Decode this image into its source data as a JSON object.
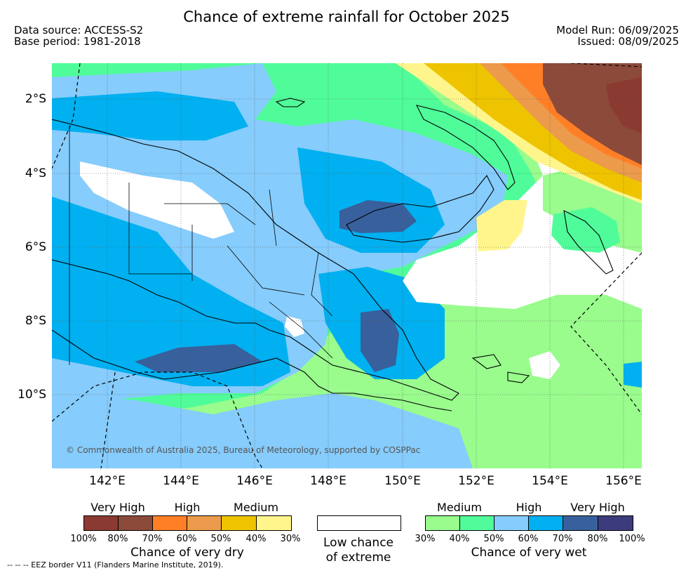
{
  "title": "Chance of extreme rainfall for October 2025",
  "data_source": "Data source: ACCESS-S2",
  "base_period": "Base period: 1981-2018",
  "model_run": "Model Run: 06/09/2025",
  "issued": "Issued: 08/09/2025",
  "map": {
    "lat_labels": [
      "2°S",
      "4°S",
      "6°S",
      "8°S",
      "10°S"
    ],
    "lon_labels": [
      "142°E",
      "144°E",
      "146°E",
      "148°E",
      "150°E",
      "152°E",
      "154°E",
      "156°E"
    ],
    "copyright": "© Commonwealth of Australia 2025, Bureau of Meteorology, supported by COSPPac"
  },
  "legend": {
    "dry": {
      "top_labels": [
        "Very High",
        "High",
        "Medium"
      ],
      "colors": [
        "#8b3a32",
        "#8c4a3a",
        "#ff7f27",
        "#eb9b4b",
        "#eec400",
        "#fff58c"
      ],
      "ticks": [
        "100%",
        "80%",
        "70%",
        "60%",
        "50%",
        "40%",
        "30%"
      ],
      "caption": "Chance of very dry"
    },
    "low": {
      "color": "#ffffff",
      "caption_line1": "Low chance",
      "caption_line2": "of extreme"
    },
    "wet": {
      "top_labels": [
        "Medium",
        "High",
        "Very High"
      ],
      "colors": [
        "#99fc8d",
        "#50fc9a",
        "#86ccfc",
        "#00b0f0",
        "#38609c",
        "#3c3c7c"
      ],
      "ticks": [
        "30%",
        "40%",
        "50%",
        "60%",
        "70%",
        "80%",
        "100%"
      ],
      "caption": "Chance of very wet"
    }
  },
  "footnote": "--  --  -- EEZ border V11 (Flanders Marine Institute, 2019)."
}
